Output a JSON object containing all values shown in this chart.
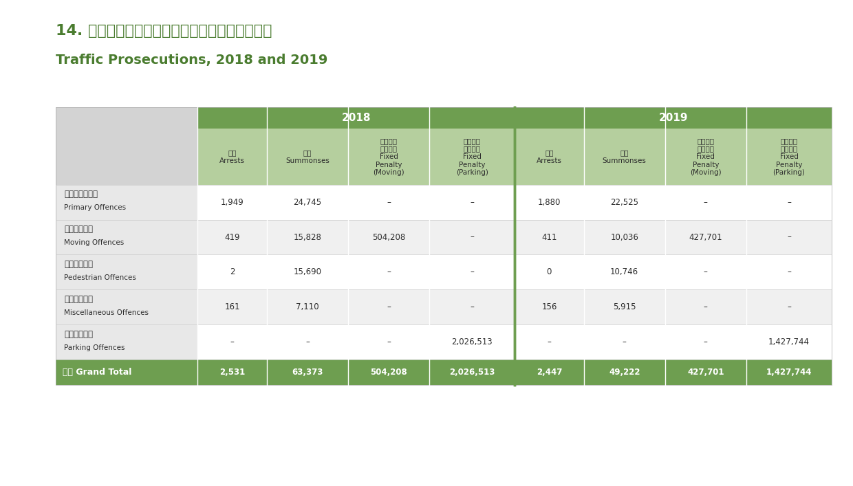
{
  "title_chinese": "14. 二零一八及二零一九年交通違例檢控統計數字",
  "title_english": "Traffic Prosecutions, 2018 and 2019",
  "title_color": "#4a7c2f",
  "header_bg_dark": "#6e9e50",
  "header_bg_light": "#b5cf9e",
  "header_text_color": "#ffffff",
  "row_bg_alt": "#f5f5f5",
  "row_bg_white": "#ffffff",
  "footer_bg": "#6e9e50",
  "footer_text_color": "#ffffff",
  "label_col_bg": "#d3d3d3",
  "border_color": "#ffffff",
  "separator_color": "#6e9e50",
  "col_headers_zh": [
    "拘捕",
    "傳票",
    "定額罰款\n（行車）",
    "定額罰款\n（泊車）",
    "拘捕",
    "傳票",
    "定額罰款\n（行車）",
    "定額罰款\n（泊車）"
  ],
  "col_headers_en": [
    "Arrests",
    "Summonses",
    "Fixed\nPenalty\n(Moving)",
    "Fixed\nPenalty\n(Parking)",
    "Arrests",
    "Summonses",
    "Fixed\nPenalty\n(Moving)",
    "Fixed\nPenalty\n(Parking)"
  ],
  "year_headers": [
    "2018",
    "2019"
  ],
  "row_labels_zh": [
    "較嚴重違例事件",
    "違例行車事件",
    "行人違例事件",
    "雜項違例事件",
    "違例泊車事件"
  ],
  "row_labels_en": [
    "Primary Offences",
    "Moving Offences",
    "Pedestrian Offences",
    "Miscellaneous Offences",
    "Parking Offences"
  ],
  "data": [
    [
      "1,949",
      "24,745",
      "–",
      "–",
      "1,880",
      "22,525",
      "–",
      "–"
    ],
    [
      "419",
      "15,828",
      "504,208",
      "–",
      "411",
      "10,036",
      "427,701",
      "–"
    ],
    [
      "2",
      "15,690",
      "–",
      "–",
      "0",
      "10,746",
      "–",
      "–"
    ],
    [
      "161",
      "7,110",
      "–",
      "–",
      "156",
      "5,915",
      "–",
      "–"
    ],
    [
      "–",
      "–",
      "–",
      "2,026,513",
      "–",
      "–",
      "–",
      "1,427,744"
    ]
  ],
  "footer_label_zh": "合計 Grand Total",
  "footer_data": [
    "2,531",
    "63,373",
    "504,208",
    "2,026,513",
    "2,447",
    "49,222",
    "427,701",
    "1,427,744"
  ],
  "background_color": "#ffffff"
}
